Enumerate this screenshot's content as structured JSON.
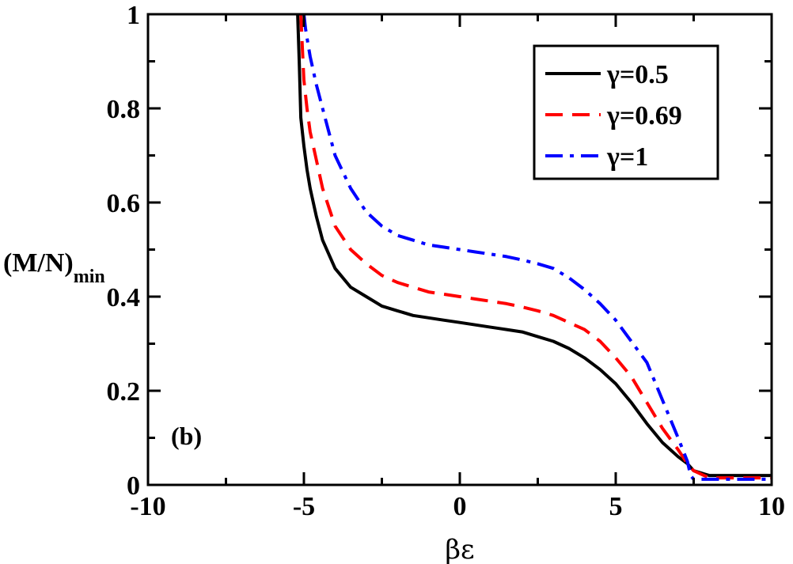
{
  "chart_data": {
    "type": "line",
    "xlabel": "βε",
    "ylabel_main": "(M/N)",
    "ylabel_sub": "min",
    "panel_label": "(b)",
    "xlim": [
      -10,
      10
    ],
    "ylim": [
      0,
      1
    ],
    "x_ticks": [
      -10,
      -5,
      0,
      5,
      10
    ],
    "x_tick_labels": [
      "-10",
      "-5",
      "0",
      "5",
      "10"
    ],
    "y_ticks": [
      0,
      0.2,
      0.4,
      0.6,
      0.8,
      1
    ],
    "y_tick_labels": [
      "0",
      "0.2",
      "0.4",
      "0.6",
      "0.8",
      "1"
    ],
    "legend_position": "top-right",
    "series": [
      {
        "name": "γ=0.5",
        "color": "#000000",
        "dash": "solid",
        "x": [
          -5.2,
          -5.15,
          -5.1,
          -5.0,
          -4.9,
          -4.8,
          -4.6,
          -4.4,
          -4.2,
          -4.0,
          -3.5,
          -3.0,
          -2.5,
          -2.0,
          -1.5,
          -1.0,
          -0.5,
          0.0,
          0.5,
          1.0,
          1.5,
          2.0,
          2.5,
          3.0,
          3.5,
          4.0,
          4.5,
          5.0,
          5.5,
          6.0,
          6.5,
          7.0,
          7.3,
          7.5,
          8.0,
          9.0,
          10.0
        ],
        "y": [
          1.0,
          0.9,
          0.78,
          0.72,
          0.67,
          0.63,
          0.57,
          0.52,
          0.49,
          0.46,
          0.42,
          0.4,
          0.38,
          0.37,
          0.36,
          0.355,
          0.35,
          0.345,
          0.34,
          0.335,
          0.33,
          0.325,
          0.315,
          0.305,
          0.29,
          0.27,
          0.245,
          0.215,
          0.175,
          0.13,
          0.09,
          0.06,
          0.045,
          0.03,
          0.02,
          0.02,
          0.02
        ]
      },
      {
        "name": "γ=0.69",
        "color": "#ff0000",
        "dash": "dashed",
        "x": [
          -5.1,
          -5.05,
          -5.0,
          -4.9,
          -4.8,
          -4.6,
          -4.4,
          -4.2,
          -4.0,
          -3.5,
          -3.0,
          -2.5,
          -2.0,
          -1.5,
          -1.0,
          -0.5,
          0.0,
          0.5,
          1.0,
          1.5,
          2.0,
          2.5,
          3.0,
          3.5,
          4.0,
          4.5,
          5.0,
          5.5,
          6.0,
          6.5,
          7.0,
          7.3,
          7.5,
          8.0,
          9.0,
          10.0
        ],
        "y": [
          1.0,
          0.93,
          0.86,
          0.8,
          0.75,
          0.69,
          0.63,
          0.59,
          0.55,
          0.5,
          0.47,
          0.445,
          0.43,
          0.42,
          0.41,
          0.405,
          0.4,
          0.395,
          0.39,
          0.385,
          0.378,
          0.37,
          0.36,
          0.345,
          0.33,
          0.305,
          0.27,
          0.23,
          0.175,
          0.12,
          0.075,
          0.045,
          0.03,
          0.015,
          0.015,
          0.015
        ]
      },
      {
        "name": "γ=1",
        "color": "#0000ff",
        "dash": "dashdot",
        "x": [
          -5.0,
          -4.95,
          -4.9,
          -4.8,
          -4.6,
          -4.4,
          -4.2,
          -4.0,
          -3.5,
          -3.0,
          -2.5,
          -2.0,
          -1.5,
          -1.0,
          -0.5,
          0.0,
          0.5,
          1.0,
          1.5,
          2.0,
          2.5,
          3.0,
          3.5,
          4.0,
          4.5,
          5.0,
          5.5,
          6.0,
          6.5,
          7.0,
          7.3,
          7.4,
          7.5,
          8.0,
          9.0,
          10.0
        ],
        "y": [
          1.0,
          0.97,
          0.95,
          0.91,
          0.85,
          0.8,
          0.75,
          0.7,
          0.63,
          0.58,
          0.55,
          0.53,
          0.52,
          0.51,
          0.505,
          0.5,
          0.495,
          0.49,
          0.485,
          0.478,
          0.47,
          0.46,
          0.44,
          0.415,
          0.385,
          0.35,
          0.305,
          0.26,
          0.18,
          0.1,
          0.05,
          0.02,
          0.012,
          0.012,
          0.012,
          0.012
        ]
      }
    ]
  }
}
